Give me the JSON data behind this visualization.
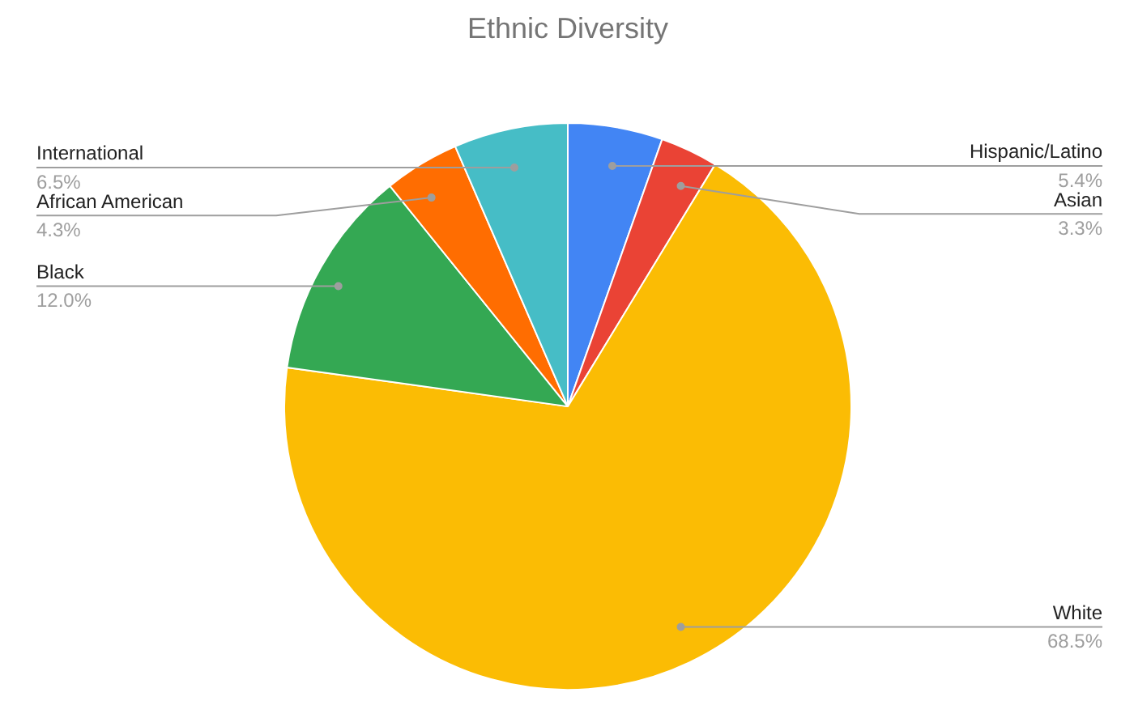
{
  "chart_data": {
    "type": "pie",
    "title": "Ethnic Diversity",
    "categories": [
      "Hispanic/Latino",
      "Asian",
      "White",
      "Black",
      "African American",
      "International"
    ],
    "values": [
      5.4,
      3.3,
      68.5,
      12.0,
      4.3,
      6.5
    ],
    "colors": [
      "#4285f4",
      "#ea4335",
      "#fbbc04",
      "#34a853",
      "#ff6d01",
      "#46bdc6"
    ],
    "value_labels": [
      "5.4%",
      "3.3%",
      "68.5%",
      "12.0%",
      "4.3%",
      "6.5%"
    ]
  }
}
